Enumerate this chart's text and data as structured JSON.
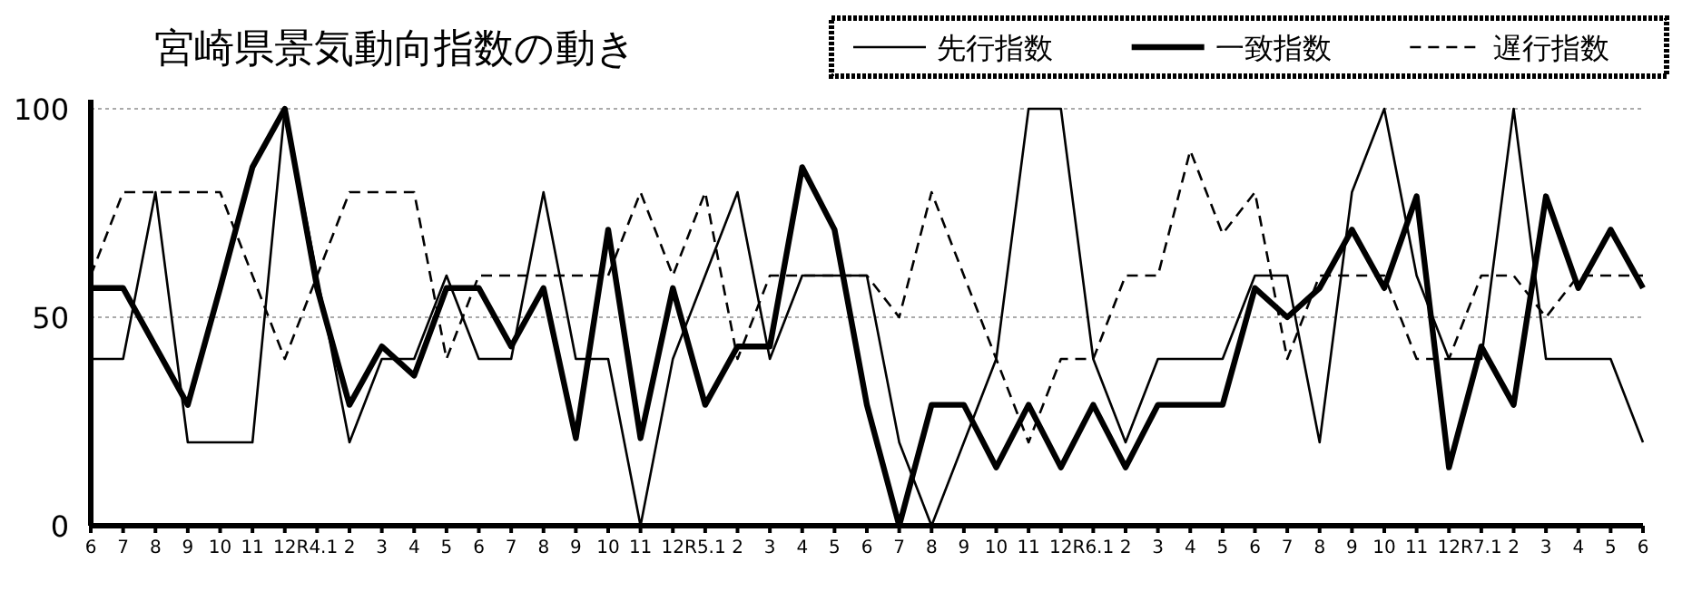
{
  "chart_data": {
    "type": "line",
    "title": "宮崎県景気動向指数の動き",
    "categories": [
      "6",
      "7",
      "8",
      "9",
      "10",
      "11",
      "12",
      "R4.1",
      "2",
      "3",
      "4",
      "5",
      "6",
      "7",
      "8",
      "9",
      "10",
      "11",
      "12",
      "R5.1",
      "2",
      "3",
      "4",
      "5",
      "6",
      "7",
      "8",
      "9",
      "10",
      "11",
      "12",
      "R6.1",
      "2",
      "3",
      "4",
      "5",
      "6",
      "7",
      "8",
      "9",
      "10",
      "11",
      "12",
      "R7.1",
      "2",
      "3",
      "4",
      "5",
      "6"
    ],
    "series": [
      {
        "name": "先行指数",
        "color": "#000000",
        "line_style": "solid",
        "values": [
          40,
          40,
          80,
          20,
          20,
          20,
          100,
          60,
          20,
          40,
          40,
          60,
          40,
          40,
          80,
          40,
          40,
          0,
          40,
          60,
          80,
          40,
          60,
          60,
          60,
          20,
          0,
          20,
          40,
          100,
          100,
          40,
          20,
          40,
          40,
          40,
          60,
          60,
          20,
          80,
          100,
          60,
          40,
          40,
          100,
          40,
          40,
          40,
          20
        ]
      },
      {
        "name": "一致指数",
        "color": "#000000",
        "line_style": "solid",
        "values": [
          57,
          57,
          43,
          29,
          57,
          86,
          100,
          57,
          29,
          43,
          36,
          57,
          57,
          43,
          57,
          21,
          71,
          21,
          57,
          29,
          43,
          43,
          86,
          71,
          29,
          0,
          29,
          29,
          14,
          29,
          14,
          29,
          14,
          29,
          29,
          29,
          57,
          50,
          57,
          71,
          57,
          79,
          14,
          43,
          29,
          79,
          57,
          71,
          57
        ]
      },
      {
        "name": "遅行指数",
        "color": "#000000",
        "line_style": "dashed",
        "values": [
          60,
          80,
          80,
          80,
          80,
          60,
          40,
          60,
          80,
          80,
          80,
          40,
          60,
          60,
          60,
          60,
          60,
          80,
          60,
          80,
          40,
          60,
          60,
          60,
          60,
          50,
          80,
          60,
          40,
          20,
          40,
          40,
          60,
          60,
          90,
          70,
          80,
          40,
          60,
          60,
          60,
          40,
          40,
          60,
          60,
          50,
          60,
          60,
          60
        ]
      }
    ],
    "ylim": [
      0,
      100
    ],
    "yticks": [
      0,
      50,
      100
    ],
    "grid": "y",
    "legend": "top right",
    "marker": "none"
  }
}
